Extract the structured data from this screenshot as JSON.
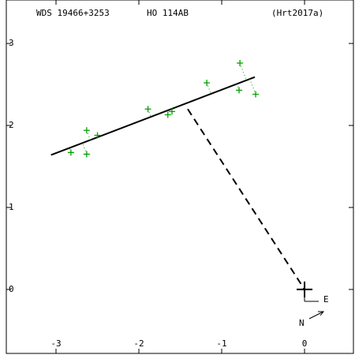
{
  "chart_data": {
    "type": "scatter",
    "header": [
      "WDS 19466+3253",
      "HO  114AB",
      "(Hrt2017a)"
    ],
    "x": [
      -2.82,
      -2.63,
      -2.63,
      -2.5,
      -1.89,
      -1.65,
      -1.6,
      -1.18,
      -0.78,
      -0.79,
      -0.59
    ],
    "values": [
      1.67,
      1.94,
      1.65,
      1.88,
      2.2,
      2.13,
      2.17,
      2.52,
      2.76,
      2.43,
      2.38
    ],
    "color": "#00a000",
    "fit_line": {
      "x": [
        -3.06,
        -0.6
      ],
      "values": [
        1.64,
        2.59
      ]
    },
    "node_line": {
      "x": [
        -1.41,
        0
      ],
      "values": [
        2.2,
        0
      ]
    },
    "compass": [
      "E",
      "N"
    ],
    "xlim": [
      -3.6,
      0.59
    ],
    "ylim": [
      -0.78,
      3.53
    ],
    "xticks": [
      -3,
      -2,
      -1,
      0
    ],
    "yticks": [
      {
        "value": 3,
        "label": "3"
      },
      {
        "value": 2,
        "label": "2"
      },
      {
        "value": 1,
        "label": "1"
      },
      {
        "value": 0,
        "label": "0"
      }
    ]
  }
}
